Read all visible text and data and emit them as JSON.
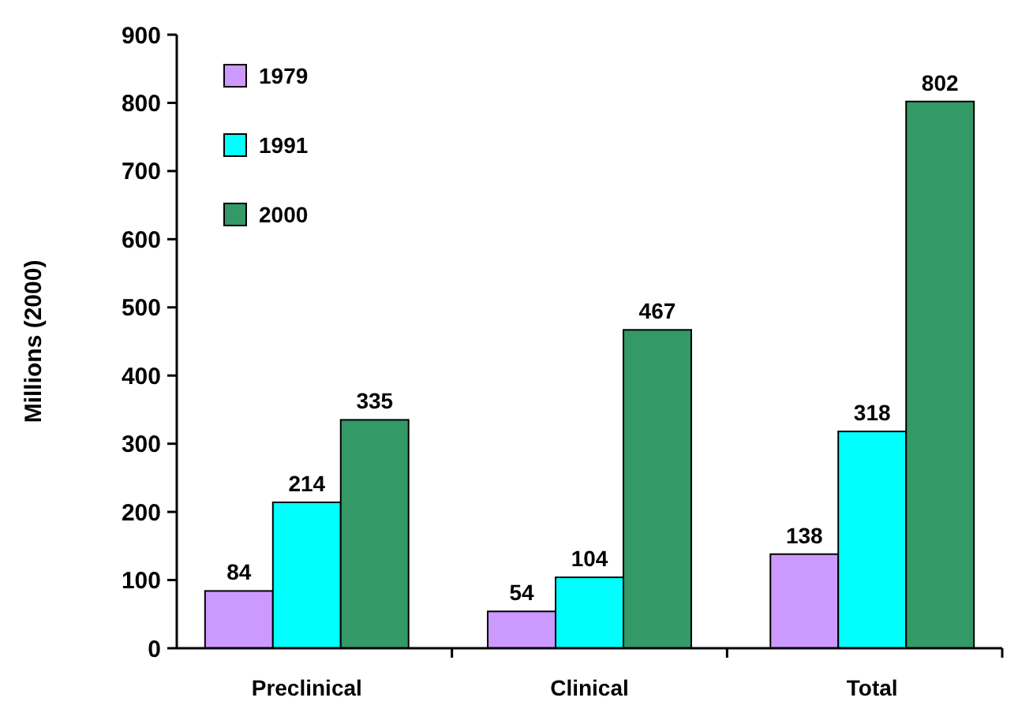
{
  "chart_data": {
    "type": "bar",
    "ylabel": "Millions (2000)",
    "categories": [
      "Preclinical",
      "Clinical",
      "Total"
    ],
    "series": [
      {
        "name": "1979",
        "color": "#cc99ff",
        "values": [
          84,
          54,
          138
        ]
      },
      {
        "name": "1991",
        "color": "#00ffff",
        "values": [
          214,
          104,
          318
        ]
      },
      {
        "name": "2000",
        "color": "#339966",
        "values": [
          335,
          467,
          802
        ]
      }
    ],
    "ylim": [
      0,
      900
    ],
    "yticks": [
      0,
      100,
      200,
      300,
      400,
      500,
      600,
      700,
      800,
      900
    ],
    "data_labels": true,
    "legend": "top left",
    "grid": false
  }
}
